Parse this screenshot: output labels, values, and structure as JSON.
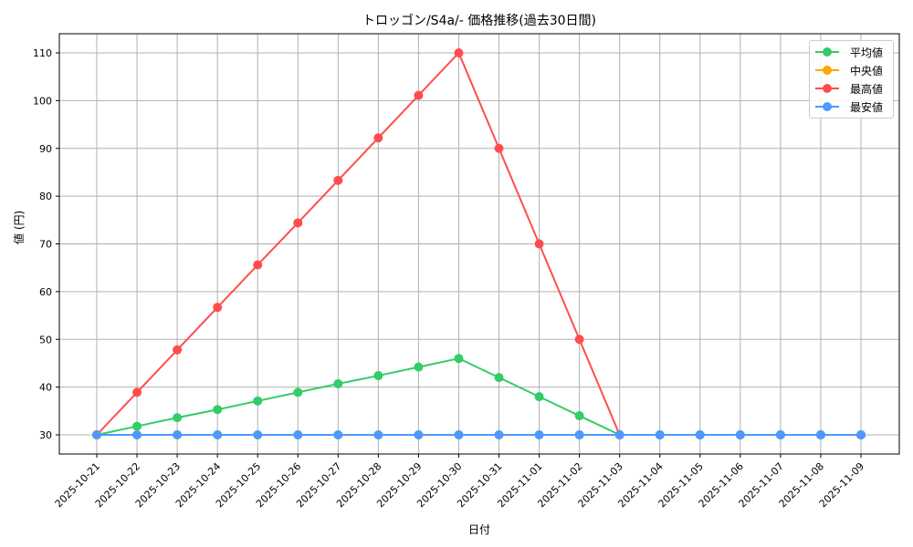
{
  "chart_data": {
    "type": "line",
    "title": "トロッゴン/S4a/- 価格推移(過去30日間)",
    "xlabel": "日付",
    "ylabel": "値 (円)",
    "ylim": [
      26,
      114
    ],
    "yticks": [
      30,
      40,
      50,
      60,
      70,
      80,
      90,
      100,
      110
    ],
    "grid": true,
    "legend_position": "upper right",
    "x": [
      "2025-10-21",
      "2025-10-22",
      "2025-10-23",
      "2025-10-24",
      "2025-10-25",
      "2025-10-26",
      "2025-10-27",
      "2025-10-28",
      "2025-10-29",
      "2025-10-30",
      "2025-10-31",
      "2025-11-01",
      "2025-11-02",
      "2025-11-03",
      "2025-11-04",
      "2025-11-05",
      "2025-11-06",
      "2025-11-07",
      "2025-11-08",
      "2025-11-09"
    ],
    "series": [
      {
        "name": "平均値",
        "color": "#33cc66",
        "values": [
          30,
          31.8,
          33.6,
          35.3,
          37.1,
          38.9,
          40.7,
          42.4,
          44.2,
          46,
          42,
          38,
          34,
          30,
          30,
          30,
          30,
          30,
          30,
          30
        ]
      },
      {
        "name": "中央値",
        "color": "#ffa500",
        "values": [
          30,
          30,
          30,
          30,
          30,
          30,
          30,
          30,
          30,
          30,
          30,
          30,
          30,
          30,
          30,
          30,
          30,
          30,
          30,
          30
        ]
      },
      {
        "name": "最高値",
        "color": "#ff4d4d",
        "values": [
          30,
          38.9,
          47.8,
          56.7,
          65.6,
          74.4,
          83.3,
          92.2,
          101.1,
          110,
          90,
          70,
          50,
          30,
          30,
          30,
          30,
          30,
          30,
          30
        ]
      },
      {
        "name": "最安値",
        "color": "#4d99ff",
        "values": [
          30,
          30,
          30,
          30,
          30,
          30,
          30,
          30,
          30,
          30,
          30,
          30,
          30,
          30,
          30,
          30,
          30,
          30,
          30,
          30
        ]
      }
    ]
  }
}
